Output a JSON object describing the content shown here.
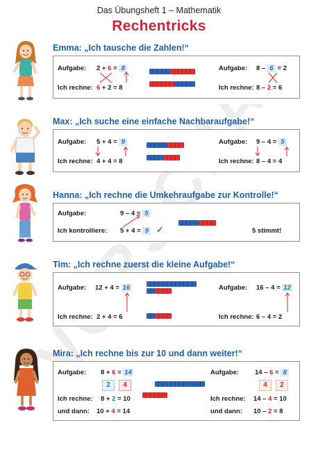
{
  "header": {
    "subtitle": "Das Übungsheft 1 – Mathematik",
    "title": "Rechentricks"
  },
  "watermark": "VORSCHAU",
  "colors": {
    "title_red": "#c8263a",
    "heading_blue": "#1f5e9e",
    "number_red": "#d0232c",
    "number_blue": "#1f6fc0"
  },
  "sections": {
    "emma": {
      "heading": "Emma: „Ich tausche die Zahlen!“",
      "left": {
        "label_task": "Aufgabe:",
        "a": "2",
        "op": "+",
        "b": "6",
        "eq": "=",
        "ans": "8",
        "label_calc": "Ich rechne:",
        "c1": "6",
        "cop": "+",
        "c2": "2",
        "ceq": "=",
        "cans": "8"
      },
      "right": {
        "label_task": "Aufgabe:",
        "a": "8",
        "op": "–",
        "b": "6",
        "eq": "=",
        "ans": "2",
        "label_calc": "Ich rechne:",
        "c1": "8",
        "cop": "–",
        "c2": "2",
        "ceq": "=",
        "cans": "6"
      }
    },
    "max": {
      "heading": "Max: „Ich suche eine einfache Nachbaraufgabe!“",
      "left": {
        "label_task": "Aufgabe:",
        "a": "5",
        "op": "+",
        "b": "4",
        "eq": "=",
        "ans": "9",
        "label_calc": "Ich rechne:",
        "c1": "4",
        "cop": "+",
        "c2": "4",
        "ceq": "=",
        "cans": "8"
      },
      "right": {
        "label_task": "Aufgabe:",
        "a": "9",
        "op": "–",
        "b": "4",
        "eq": "=",
        "ans": "5",
        "label_calc": "Ich rechne:",
        "c1": "8",
        "cop": "–",
        "c2": "4",
        "ceq": "=",
        "cans": "4"
      }
    },
    "hanna": {
      "heading": "Hanna: „Ich rechne die Umkehraufgabe zur Kontrolle!“",
      "label_task": "Aufgabe:",
      "a": "9",
      "op": "–",
      "b": "4",
      "eq": "=",
      "ans": "5",
      "label_check": "Ich kontrolliere:",
      "c1": "5",
      "cop": "+",
      "c2": "4",
      "ceq": "=",
      "cans": "9",
      "result": "5 stimmt!"
    },
    "tim": {
      "heading": "Tim: „Ich rechne zuerst die kleine Aufgabe!“",
      "left": {
        "label_task": "Aufgabe:",
        "a": "12",
        "op": "+",
        "b": "4",
        "eq": "=",
        "ans": "16",
        "label_calc": "Ich rechne:",
        "c1": "2",
        "cop": "+",
        "c2": "4",
        "ceq": "=",
        "cans": "6"
      },
      "right": {
        "label_task": "Aufgabe:",
        "a": "16",
        "op": "–",
        "b": "4",
        "eq": "=",
        "ans": "12",
        "label_calc": "Ich rechne:",
        "c1": "6",
        "cop": "–",
        "c2": "4",
        "ceq": "=",
        "cans": "2"
      }
    },
    "mira": {
      "heading": "Mira: „Ich rechne bis zur 10 und dann weiter!“",
      "left": {
        "label_task": "Aufgabe:",
        "a": "8",
        "op": "+",
        "b": "6",
        "eq": "=",
        "ans": "14",
        "split1": "2",
        "split2": "4",
        "label_calc": "Ich rechne:",
        "c1": "8",
        "cop": "+",
        "c2": "2",
        "ceq": "=",
        "cans": "10",
        "label_then": "und dann:",
        "d1": "10",
        "dop": "+",
        "d2": "4",
        "deq": "=",
        "dans": "14"
      },
      "right": {
        "label_task": "Aufgabe:",
        "a": "14",
        "op": "–",
        "b": "6",
        "eq": "=",
        "ans": "8",
        "split1": "4",
        "split2": "2",
        "label_calc": "Ich rechne:",
        "c1": "14",
        "cop": "–",
        "c2": "4",
        "ceq": "=",
        "cans": "10",
        "label_then": "und dann:",
        "d1": "10",
        "dop": "–",
        "d2": "2",
        "deq": "=",
        "dans": "8"
      }
    }
  }
}
